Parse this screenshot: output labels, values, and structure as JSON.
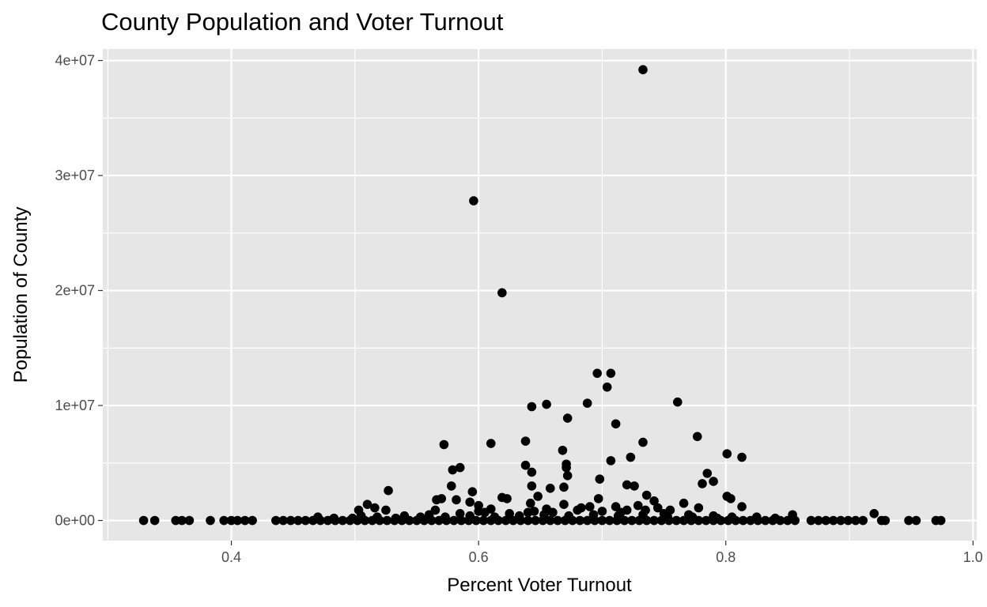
{
  "chart_data": {
    "type": "scatter",
    "title": "County Population and Voter Turnout",
    "xlabel": "Percent Voter Turnout",
    "ylabel": "Population of County",
    "xlim": [
      0.296,
      1.003
    ],
    "ylim": [
      -1750000,
      41000000
    ],
    "x_ticks": [
      0.4,
      0.6,
      0.8,
      1.0
    ],
    "x_tick_labels": [
      "0.4",
      "0.6",
      "0.8",
      "1.0"
    ],
    "y_ticks": [
      0,
      10000000,
      20000000,
      30000000,
      40000000
    ],
    "y_tick_labels": [
      "0e+00",
      "1e+07",
      "2e+07",
      "3e+07",
      "4e+07"
    ],
    "grid": true,
    "legend": "none",
    "colors": {
      "panel": "#e6e6e6",
      "grid": "#ffffff",
      "point": "#000000",
      "tick": "#4d4d4d"
    },
    "points": [
      [
        0.733,
        39200000
      ],
      [
        0.596,
        27800000
      ],
      [
        0.619,
        19800000
      ],
      [
        0.696,
        12800000
      ],
      [
        0.707,
        12800000
      ],
      [
        0.704,
        11600000
      ],
      [
        0.761,
        10300000
      ],
      [
        0.643,
        9900000
      ],
      [
        0.655,
        10100000
      ],
      [
        0.688,
        10200000
      ],
      [
        0.672,
        8900000
      ],
      [
        0.711,
        8400000
      ],
      [
        0.777,
        7300000
      ],
      [
        0.733,
        6800000
      ],
      [
        0.638,
        6900000
      ],
      [
        0.572,
        6600000
      ],
      [
        0.61,
        6700000
      ],
      [
        0.668,
        6100000
      ],
      [
        0.707,
        5200000
      ],
      [
        0.723,
        5500000
      ],
      [
        0.801,
        5800000
      ],
      [
        0.813,
        5500000
      ],
      [
        0.638,
        4800000
      ],
      [
        0.671,
        4900000
      ],
      [
        0.671,
        4600000
      ],
      [
        0.643,
        4200000
      ],
      [
        0.785,
        4100000
      ],
      [
        0.585,
        4600000
      ],
      [
        0.579,
        4400000
      ],
      [
        0.672,
        3900000
      ],
      [
        0.698,
        3600000
      ],
      [
        0.781,
        3200000
      ],
      [
        0.79,
        3400000
      ],
      [
        0.72,
        3100000
      ],
      [
        0.726,
        3000000
      ],
      [
        0.578,
        3000000
      ],
      [
        0.643,
        3000000
      ],
      [
        0.669,
        2900000
      ],
      [
        0.658,
        2800000
      ],
      [
        0.527,
        2600000
      ],
      [
        0.595,
        2500000
      ],
      [
        0.736,
        2200000
      ],
      [
        0.648,
        2100000
      ],
      [
        0.619,
        2000000
      ],
      [
        0.623,
        1900000
      ],
      [
        0.801,
        2100000
      ],
      [
        0.804,
        1900000
      ],
      [
        0.57,
        1900000
      ],
      [
        0.582,
        1800000
      ],
      [
        0.566,
        1800000
      ],
      [
        0.697,
        1900000
      ],
      [
        0.742,
        1700000
      ],
      [
        0.593,
        1600000
      ],
      [
        0.766,
        1500000
      ],
      [
        0.642,
        1500000
      ],
      [
        0.51,
        1400000
      ],
      [
        0.516,
        1100000
      ],
      [
        0.6,
        1300000
      ],
      [
        0.669,
        1400000
      ],
      [
        0.711,
        1200000
      ],
      [
        0.813,
        1200000
      ],
      [
        0.778,
        1100000
      ],
      [
        0.503,
        900000
      ],
      [
        0.525,
        900000
      ],
      [
        0.61,
        1000000
      ],
      [
        0.729,
        1300000
      ],
      [
        0.92,
        600000
      ],
      [
        0.854,
        500000
      ],
      [
        0.755,
        900000
      ],
      [
        0.329,
        0
      ],
      [
        0.338,
        0
      ],
      [
        0.355,
        0
      ],
      [
        0.36,
        0
      ],
      [
        0.366,
        0
      ],
      [
        0.383,
        0
      ],
      [
        0.394,
        0
      ],
      [
        0.4,
        0
      ],
      [
        0.405,
        0
      ],
      [
        0.411,
        0
      ],
      [
        0.417,
        0
      ],
      [
        0.436,
        0
      ],
      [
        0.442,
        0
      ],
      [
        0.448,
        0
      ],
      [
        0.454,
        0
      ],
      [
        0.46,
        0
      ],
      [
        0.466,
        0
      ],
      [
        0.472,
        0
      ],
      [
        0.478,
        0
      ],
      [
        0.484,
        0
      ],
      [
        0.49,
        0
      ],
      [
        0.496,
        0
      ],
      [
        0.502,
        0
      ],
      [
        0.508,
        0
      ],
      [
        0.514,
        0
      ],
      [
        0.52,
        0
      ],
      [
        0.526,
        0
      ],
      [
        0.532,
        0
      ],
      [
        0.538,
        0
      ],
      [
        0.544,
        0
      ],
      [
        0.55,
        0
      ],
      [
        0.556,
        0
      ],
      [
        0.562,
        0
      ],
      [
        0.568,
        0
      ],
      [
        0.574,
        0
      ],
      [
        0.58,
        0
      ],
      [
        0.586,
        0
      ],
      [
        0.592,
        0
      ],
      [
        0.598,
        0
      ],
      [
        0.604,
        0
      ],
      [
        0.61,
        0
      ],
      [
        0.616,
        0
      ],
      [
        0.622,
        0
      ],
      [
        0.628,
        0
      ],
      [
        0.634,
        0
      ],
      [
        0.64,
        0
      ],
      [
        0.646,
        0
      ],
      [
        0.652,
        0
      ],
      [
        0.658,
        0
      ],
      [
        0.664,
        0
      ],
      [
        0.67,
        0
      ],
      [
        0.676,
        0
      ],
      [
        0.682,
        0
      ],
      [
        0.688,
        0
      ],
      [
        0.694,
        0
      ],
      [
        0.7,
        0
      ],
      [
        0.706,
        0
      ],
      [
        0.712,
        0
      ],
      [
        0.718,
        0
      ],
      [
        0.724,
        0
      ],
      [
        0.73,
        0
      ],
      [
        0.736,
        0
      ],
      [
        0.742,
        0
      ],
      [
        0.748,
        0
      ],
      [
        0.754,
        0
      ],
      [
        0.76,
        0
      ],
      [
        0.766,
        0
      ],
      [
        0.772,
        0
      ],
      [
        0.778,
        0
      ],
      [
        0.784,
        0
      ],
      [
        0.79,
        0
      ],
      [
        0.796,
        0
      ],
      [
        0.802,
        0
      ],
      [
        0.808,
        0
      ],
      [
        0.814,
        0
      ],
      [
        0.82,
        0
      ],
      [
        0.826,
        0
      ],
      [
        0.832,
        0
      ],
      [
        0.838,
        0
      ],
      [
        0.844,
        0
      ],
      [
        0.85,
        0
      ],
      [
        0.856,
        0
      ],
      [
        0.869,
        0
      ],
      [
        0.875,
        0
      ],
      [
        0.881,
        0
      ],
      [
        0.887,
        0
      ],
      [
        0.893,
        0
      ],
      [
        0.899,
        0
      ],
      [
        0.905,
        0
      ],
      [
        0.911,
        0
      ],
      [
        0.926,
        0
      ],
      [
        0.929,
        0
      ],
      [
        0.948,
        0
      ],
      [
        0.954,
        0
      ],
      [
        0.97,
        0
      ],
      [
        0.974,
        0
      ],
      [
        0.47,
        300000
      ],
      [
        0.505,
        400000
      ],
      [
        0.54,
        400000
      ],
      [
        0.56,
        500000
      ],
      [
        0.585,
        600000
      ],
      [
        0.605,
        700000
      ],
      [
        0.625,
        600000
      ],
      [
        0.645,
        800000
      ],
      [
        0.66,
        700000
      ],
      [
        0.68,
        900000
      ],
      [
        0.7,
        800000
      ],
      [
        0.715,
        700000
      ],
      [
        0.735,
        900000
      ],
      [
        0.75,
        600000
      ],
      [
        0.77,
        500000
      ],
      [
        0.79,
        400000
      ],
      [
        0.805,
        300000
      ],
      [
        0.825,
        300000
      ],
      [
        0.84,
        200000
      ],
      [
        0.533,
        200000
      ],
      [
        0.553,
        300000
      ],
      [
        0.573,
        300000
      ],
      [
        0.593,
        400000
      ],
      [
        0.613,
        300000
      ],
      [
        0.633,
        400000
      ],
      [
        0.653,
        500000
      ],
      [
        0.673,
        400000
      ],
      [
        0.693,
        500000
      ],
      [
        0.713,
        400000
      ],
      [
        0.733,
        500000
      ],
      [
        0.753,
        300000
      ],
      [
        0.773,
        300000
      ],
      [
        0.793,
        200000
      ],
      [
        0.483,
        200000
      ],
      [
        0.498,
        200000
      ],
      [
        0.518,
        300000
      ],
      [
        0.683,
        1100000
      ],
      [
        0.72,
        900000
      ],
      [
        0.745,
        1100000
      ],
      [
        0.655,
        1000000
      ],
      [
        0.69,
        1200000
      ],
      [
        0.64,
        700000
      ],
      [
        0.6,
        800000
      ],
      [
        0.565,
        900000
      ]
    ]
  }
}
